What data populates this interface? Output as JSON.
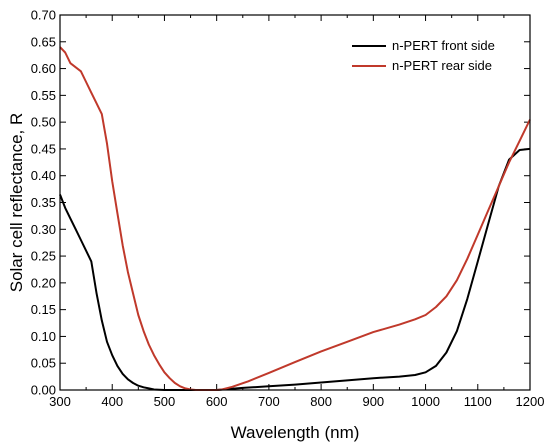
{
  "chart_data": {
    "type": "line",
    "title": "",
    "xlabel": "Wavelength (nm)",
    "ylabel": "Solar cell reflectance, R",
    "xlim": [
      300,
      1200
    ],
    "ylim": [
      0,
      0.7
    ],
    "x_ticks": [
      "300",
      "400",
      "500",
      "600",
      "700",
      "800",
      "900",
      "1000",
      "1100",
      "1200"
    ],
    "y_ticks": [
      "0.00",
      "0.05",
      "0.10",
      "0.15",
      "0.20",
      "0.25",
      "0.30",
      "0.35",
      "0.40",
      "0.45",
      "0.50",
      "0.55",
      "0.60",
      "0.65",
      "0.70"
    ],
    "grid": false,
    "legend_position": "top-right",
    "series": [
      {
        "name": "n-PERT front side",
        "color": "#000000",
        "points": [
          [
            300,
            0.365
          ],
          [
            310,
            0.34
          ],
          [
            320,
            0.32
          ],
          [
            330,
            0.3
          ],
          [
            340,
            0.28
          ],
          [
            350,
            0.26
          ],
          [
            360,
            0.24
          ],
          [
            370,
            0.18
          ],
          [
            380,
            0.13
          ],
          [
            390,
            0.09
          ],
          [
            400,
            0.065
          ],
          [
            410,
            0.045
          ],
          [
            420,
            0.03
          ],
          [
            430,
            0.02
          ],
          [
            440,
            0.013
          ],
          [
            450,
            0.008
          ],
          [
            460,
            0.005
          ],
          [
            470,
            0.003
          ],
          [
            480,
            0.001
          ],
          [
            500,
            0.0
          ],
          [
            550,
            0.0
          ],
          [
            600,
            0.0
          ],
          [
            650,
            0.004
          ],
          [
            700,
            0.007
          ],
          [
            750,
            0.01
          ],
          [
            800,
            0.014
          ],
          [
            850,
            0.018
          ],
          [
            900,
            0.022
          ],
          [
            950,
            0.025
          ],
          [
            980,
            0.028
          ],
          [
            1000,
            0.033
          ],
          [
            1020,
            0.045
          ],
          [
            1040,
            0.07
          ],
          [
            1060,
            0.11
          ],
          [
            1080,
            0.17
          ],
          [
            1100,
            0.24
          ],
          [
            1120,
            0.31
          ],
          [
            1140,
            0.38
          ],
          [
            1160,
            0.43
          ],
          [
            1180,
            0.448
          ],
          [
            1200,
            0.45
          ]
        ]
      },
      {
        "name": "n-PERT rear side",
        "color": "#c0392b",
        "points": [
          [
            300,
            0.64
          ],
          [
            310,
            0.63
          ],
          [
            320,
            0.61
          ],
          [
            340,
            0.595
          ],
          [
            350,
            0.575
          ],
          [
            360,
            0.555
          ],
          [
            370,
            0.535
          ],
          [
            380,
            0.515
          ],
          [
            390,
            0.46
          ],
          [
            400,
            0.39
          ],
          [
            410,
            0.33
          ],
          [
            420,
            0.27
          ],
          [
            430,
            0.22
          ],
          [
            440,
            0.18
          ],
          [
            450,
            0.14
          ],
          [
            460,
            0.11
          ],
          [
            470,
            0.085
          ],
          [
            480,
            0.065
          ],
          [
            490,
            0.048
          ],
          [
            500,
            0.033
          ],
          [
            510,
            0.022
          ],
          [
            520,
            0.013
          ],
          [
            530,
            0.007
          ],
          [
            540,
            0.003
          ],
          [
            550,
            0.001
          ],
          [
            560,
            0.0
          ],
          [
            600,
            0.0
          ],
          [
            610,
            0.001
          ],
          [
            630,
            0.006
          ],
          [
            660,
            0.016
          ],
          [
            700,
            0.032
          ],
          [
            750,
            0.052
          ],
          [
            800,
            0.072
          ],
          [
            850,
            0.09
          ],
          [
            900,
            0.108
          ],
          [
            950,
            0.122
          ],
          [
            980,
            0.132
          ],
          [
            1000,
            0.14
          ],
          [
            1020,
            0.155
          ],
          [
            1040,
            0.175
          ],
          [
            1060,
            0.205
          ],
          [
            1080,
            0.245
          ],
          [
            1100,
            0.29
          ],
          [
            1120,
            0.335
          ],
          [
            1140,
            0.38
          ],
          [
            1160,
            0.425
          ],
          [
            1180,
            0.465
          ],
          [
            1200,
            0.505
          ]
        ]
      }
    ]
  }
}
